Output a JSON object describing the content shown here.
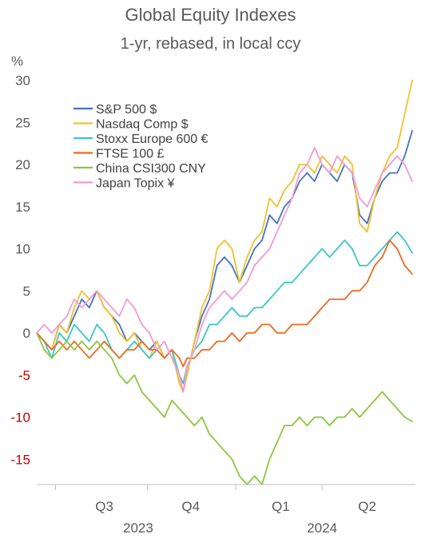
{
  "chart_data": {
    "type": "line",
    "title": "Global Equity Indexes",
    "subtitle": "1-yr, rebased, in local ccy",
    "ylabel": "%",
    "ylim": [
      -18,
      31
    ],
    "yticks": [
      30,
      25,
      20,
      15,
      10,
      5,
      0,
      -5,
      -10,
      -15
    ],
    "negative_tick_color": "#c00000",
    "xlim": [
      0,
      1
    ],
    "quarter_labels": [
      {
        "label": "Q3",
        "x": 0.18
      },
      {
        "label": "Q4",
        "x": 0.41
      },
      {
        "label": "Q1",
        "x": 0.65
      },
      {
        "label": "Q2",
        "x": 0.88
      }
    ],
    "quarter_ticks": [
      0.05,
      0.295,
      0.53,
      0.76
    ],
    "year_labels": [
      {
        "label": "2023",
        "x": 0.27
      },
      {
        "label": "2024",
        "x": 0.76
      }
    ],
    "legend_position": "top-left",
    "series": [
      {
        "name": "S&P 500 $",
        "color": "#4472c4",
        "points": [
          [
            0,
            0
          ],
          [
            0.02,
            -1
          ],
          [
            0.04,
            -2
          ],
          [
            0.06,
            1
          ],
          [
            0.08,
            0
          ],
          [
            0.1,
            2
          ],
          [
            0.12,
            4
          ],
          [
            0.14,
            3
          ],
          [
            0.16,
            5
          ],
          [
            0.18,
            3
          ],
          [
            0.2,
            2
          ],
          [
            0.22,
            1
          ],
          [
            0.24,
            -1
          ],
          [
            0.26,
            0
          ],
          [
            0.28,
            -1
          ],
          [
            0.3,
            -2
          ],
          [
            0.32,
            -1
          ],
          [
            0.34,
            -3
          ],
          [
            0.36,
            -2
          ],
          [
            0.38,
            -6
          ],
          [
            0.39,
            -7
          ],
          [
            0.4,
            -5
          ],
          [
            0.42,
            -1
          ],
          [
            0.44,
            2
          ],
          [
            0.46,
            4
          ],
          [
            0.48,
            8
          ],
          [
            0.5,
            9
          ],
          [
            0.52,
            8
          ],
          [
            0.54,
            6
          ],
          [
            0.56,
            8
          ],
          [
            0.58,
            10
          ],
          [
            0.6,
            11
          ],
          [
            0.62,
            14
          ],
          [
            0.64,
            13
          ],
          [
            0.66,
            15
          ],
          [
            0.68,
            16
          ],
          [
            0.7,
            18
          ],
          [
            0.72,
            19
          ],
          [
            0.74,
            18
          ],
          [
            0.76,
            20
          ],
          [
            0.78,
            19
          ],
          [
            0.8,
            18
          ],
          [
            0.82,
            20
          ],
          [
            0.84,
            19
          ],
          [
            0.86,
            14
          ],
          [
            0.88,
            13
          ],
          [
            0.9,
            16
          ],
          [
            0.92,
            18
          ],
          [
            0.94,
            19
          ],
          [
            0.96,
            19
          ],
          [
            0.98,
            21
          ],
          [
            1,
            24
          ]
        ]
      },
      {
        "name": "Nasdaq Comp $",
        "color": "#f2c12e",
        "points": [
          [
            0,
            0
          ],
          [
            0.02,
            -1
          ],
          [
            0.04,
            -2
          ],
          [
            0.06,
            1
          ],
          [
            0.08,
            0
          ],
          [
            0.1,
            3
          ],
          [
            0.12,
            5
          ],
          [
            0.14,
            4
          ],
          [
            0.16,
            5
          ],
          [
            0.18,
            3
          ],
          [
            0.2,
            2
          ],
          [
            0.22,
            0
          ],
          [
            0.24,
            -1
          ],
          [
            0.26,
            0
          ],
          [
            0.28,
            -2
          ],
          [
            0.3,
            -3
          ],
          [
            0.32,
            -1
          ],
          [
            0.34,
            -3
          ],
          [
            0.36,
            -2
          ],
          [
            0.38,
            -6
          ],
          [
            0.39,
            -7
          ],
          [
            0.4,
            -5
          ],
          [
            0.42,
            -1
          ],
          [
            0.44,
            3
          ],
          [
            0.46,
            5
          ],
          [
            0.48,
            10
          ],
          [
            0.5,
            11
          ],
          [
            0.52,
            10
          ],
          [
            0.54,
            6
          ],
          [
            0.56,
            9
          ],
          [
            0.58,
            11
          ],
          [
            0.6,
            12
          ],
          [
            0.62,
            16
          ],
          [
            0.64,
            15
          ],
          [
            0.66,
            17
          ],
          [
            0.68,
            18
          ],
          [
            0.7,
            20
          ],
          [
            0.72,
            20
          ],
          [
            0.74,
            19
          ],
          [
            0.76,
            21
          ],
          [
            0.78,
            20
          ],
          [
            0.8,
            19
          ],
          [
            0.82,
            21
          ],
          [
            0.84,
            20
          ],
          [
            0.86,
            13
          ],
          [
            0.88,
            12
          ],
          [
            0.9,
            16
          ],
          [
            0.92,
            19
          ],
          [
            0.94,
            21
          ],
          [
            0.96,
            22
          ],
          [
            0.98,
            26
          ],
          [
            1,
            30
          ]
        ]
      },
      {
        "name": "Stoxx Europe 600 €",
        "color": "#3dc6c6",
        "points": [
          [
            0,
            0
          ],
          [
            0.02,
            -1
          ],
          [
            0.04,
            -3
          ],
          [
            0.06,
            0
          ],
          [
            0.08,
            -1
          ],
          [
            0.1,
            1
          ],
          [
            0.12,
            0
          ],
          [
            0.14,
            -1
          ],
          [
            0.16,
            1
          ],
          [
            0.18,
            0
          ],
          [
            0.2,
            -2
          ],
          [
            0.22,
            -3
          ],
          [
            0.24,
            -2
          ],
          [
            0.26,
            -1
          ],
          [
            0.28,
            -2
          ],
          [
            0.3,
            -3
          ],
          [
            0.32,
            -2
          ],
          [
            0.34,
            -3
          ],
          [
            0.36,
            -2
          ],
          [
            0.38,
            -5
          ],
          [
            0.39,
            -6
          ],
          [
            0.4,
            -4
          ],
          [
            0.42,
            -2
          ],
          [
            0.44,
            -1
          ],
          [
            0.46,
            1
          ],
          [
            0.48,
            1
          ],
          [
            0.5,
            2
          ],
          [
            0.52,
            3
          ],
          [
            0.54,
            2
          ],
          [
            0.56,
            2
          ],
          [
            0.58,
            3
          ],
          [
            0.6,
            3
          ],
          [
            0.62,
            4
          ],
          [
            0.64,
            5
          ],
          [
            0.66,
            6
          ],
          [
            0.68,
            6
          ],
          [
            0.7,
            7
          ],
          [
            0.72,
            8
          ],
          [
            0.74,
            9
          ],
          [
            0.76,
            10
          ],
          [
            0.78,
            9
          ],
          [
            0.8,
            10
          ],
          [
            0.82,
            11
          ],
          [
            0.84,
            10
          ],
          [
            0.86,
            8
          ],
          [
            0.88,
            8
          ],
          [
            0.9,
            9
          ],
          [
            0.92,
            10
          ],
          [
            0.94,
            11
          ],
          [
            0.96,
            12
          ],
          [
            0.98,
            11
          ],
          [
            1,
            9.5
          ]
        ]
      },
      {
        "name": "FTSE 100 £",
        "color": "#ed6a1f",
        "points": [
          [
            0,
            0
          ],
          [
            0.02,
            -1
          ],
          [
            0.04,
            -2
          ],
          [
            0.06,
            -1
          ],
          [
            0.08,
            -2
          ],
          [
            0.1,
            -1
          ],
          [
            0.12,
            -2
          ],
          [
            0.14,
            -3
          ],
          [
            0.16,
            -2
          ],
          [
            0.18,
            -1
          ],
          [
            0.2,
            -2
          ],
          [
            0.22,
            -3
          ],
          [
            0.24,
            -2
          ],
          [
            0.26,
            -2
          ],
          [
            0.28,
            -1
          ],
          [
            0.3,
            -2
          ],
          [
            0.32,
            -2
          ],
          [
            0.34,
            -3
          ],
          [
            0.36,
            -2
          ],
          [
            0.38,
            -3
          ],
          [
            0.39,
            -4
          ],
          [
            0.4,
            -3
          ],
          [
            0.42,
            -3
          ],
          [
            0.44,
            -2
          ],
          [
            0.46,
            -2
          ],
          [
            0.48,
            -1
          ],
          [
            0.5,
            -1
          ],
          [
            0.52,
            0
          ],
          [
            0.54,
            -1
          ],
          [
            0.56,
            0
          ],
          [
            0.58,
            0
          ],
          [
            0.6,
            1
          ],
          [
            0.62,
            1
          ],
          [
            0.64,
            0
          ],
          [
            0.66,
            0
          ],
          [
            0.68,
            1
          ],
          [
            0.7,
            1
          ],
          [
            0.72,
            1
          ],
          [
            0.74,
            2
          ],
          [
            0.76,
            3
          ],
          [
            0.78,
            4
          ],
          [
            0.8,
            4
          ],
          [
            0.82,
            4
          ],
          [
            0.84,
            5
          ],
          [
            0.86,
            5
          ],
          [
            0.88,
            6
          ],
          [
            0.9,
            8
          ],
          [
            0.92,
            9
          ],
          [
            0.94,
            11
          ],
          [
            0.96,
            10
          ],
          [
            0.98,
            8
          ],
          [
            1,
            7
          ]
        ]
      },
      {
        "name": "China CSI300 CNY",
        "color": "#8dc63f",
        "points": [
          [
            0,
            0
          ],
          [
            0.02,
            -2
          ],
          [
            0.04,
            -3
          ],
          [
            0.06,
            -2
          ],
          [
            0.08,
            -1
          ],
          [
            0.1,
            -2
          ],
          [
            0.12,
            -1
          ],
          [
            0.14,
            -2
          ],
          [
            0.16,
            -1
          ],
          [
            0.18,
            -2
          ],
          [
            0.2,
            -3
          ],
          [
            0.22,
            -5
          ],
          [
            0.24,
            -6
          ],
          [
            0.26,
            -5
          ],
          [
            0.28,
            -7
          ],
          [
            0.3,
            -8
          ],
          [
            0.32,
            -9
          ],
          [
            0.34,
            -10
          ],
          [
            0.36,
            -8
          ],
          [
            0.38,
            -9
          ],
          [
            0.4,
            -10
          ],
          [
            0.42,
            -11
          ],
          [
            0.44,
            -10
          ],
          [
            0.46,
            -12
          ],
          [
            0.48,
            -13
          ],
          [
            0.5,
            -14
          ],
          [
            0.52,
            -15
          ],
          [
            0.54,
            -17
          ],
          [
            0.56,
            -18
          ],
          [
            0.58,
            -17
          ],
          [
            0.6,
            -18
          ],
          [
            0.62,
            -15
          ],
          [
            0.64,
            -13
          ],
          [
            0.66,
            -11
          ],
          [
            0.68,
            -11
          ],
          [
            0.7,
            -10
          ],
          [
            0.72,
            -11
          ],
          [
            0.74,
            -10
          ],
          [
            0.76,
            -10
          ],
          [
            0.78,
            -11
          ],
          [
            0.8,
            -10
          ],
          [
            0.82,
            -10
          ],
          [
            0.84,
            -9
          ],
          [
            0.86,
            -10
          ],
          [
            0.88,
            -9
          ],
          [
            0.9,
            -8
          ],
          [
            0.92,
            -7
          ],
          [
            0.94,
            -8
          ],
          [
            0.96,
            -9
          ],
          [
            0.98,
            -10
          ],
          [
            1,
            -10.5
          ]
        ]
      },
      {
        "name": "Japan Topix ¥",
        "color": "#f29bd4",
        "points": [
          [
            0,
            0
          ],
          [
            0.02,
            1
          ],
          [
            0.04,
            0
          ],
          [
            0.06,
            1
          ],
          [
            0.08,
            2
          ],
          [
            0.1,
            4
          ],
          [
            0.12,
            3
          ],
          [
            0.14,
            4
          ],
          [
            0.16,
            5
          ],
          [
            0.18,
            4
          ],
          [
            0.2,
            3
          ],
          [
            0.22,
            2
          ],
          [
            0.24,
            4
          ],
          [
            0.26,
            3
          ],
          [
            0.28,
            1
          ],
          [
            0.3,
            0
          ],
          [
            0.32,
            -2
          ],
          [
            0.34,
            -1
          ],
          [
            0.36,
            -3
          ],
          [
            0.38,
            -5
          ],
          [
            0.39,
            -7
          ],
          [
            0.4,
            -4
          ],
          [
            0.42,
            -2
          ],
          [
            0.44,
            1
          ],
          [
            0.46,
            3
          ],
          [
            0.48,
            4
          ],
          [
            0.5,
            5
          ],
          [
            0.52,
            4
          ],
          [
            0.54,
            5
          ],
          [
            0.56,
            6
          ],
          [
            0.58,
            8
          ],
          [
            0.6,
            9
          ],
          [
            0.62,
            10
          ],
          [
            0.64,
            12
          ],
          [
            0.66,
            14
          ],
          [
            0.68,
            16
          ],
          [
            0.7,
            19
          ],
          [
            0.72,
            20
          ],
          [
            0.74,
            22
          ],
          [
            0.76,
            20
          ],
          [
            0.78,
            19
          ],
          [
            0.8,
            21
          ],
          [
            0.82,
            20
          ],
          [
            0.84,
            19
          ],
          [
            0.86,
            16
          ],
          [
            0.88,
            15
          ],
          [
            0.9,
            17
          ],
          [
            0.92,
            19
          ],
          [
            0.94,
            20
          ],
          [
            0.96,
            21
          ],
          [
            0.98,
            20
          ],
          [
            1,
            18
          ]
        ]
      }
    ]
  }
}
